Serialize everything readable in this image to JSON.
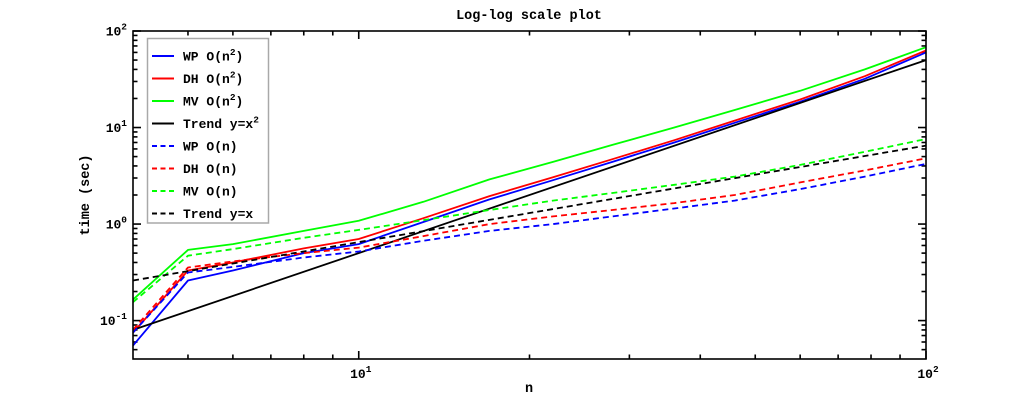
{
  "chart_data": {
    "type": "line",
    "title": "Log-log scale plot",
    "xlabel": "n",
    "ylabel": "time (sec)",
    "x_scale": "log",
    "y_scale": "log",
    "xlim": [
      4,
      100
    ],
    "ylim": [
      0.04,
      100
    ],
    "grid": false,
    "legend_position": "upper-left",
    "x_major_ticks": [
      {
        "value": 10,
        "base": "10",
        "exp": "1"
      },
      {
        "value": 100,
        "base": "10",
        "exp": "2"
      }
    ],
    "x_minor_ticks": [
      5,
      6,
      7,
      8,
      9,
      20,
      30,
      40,
      50,
      60,
      70,
      80,
      90
    ],
    "y_major_ticks": [
      {
        "value": 0.1,
        "base": "10",
        "exp": "-1"
      },
      {
        "value": 1,
        "base": "10",
        "exp": "0"
      },
      {
        "value": 10,
        "base": "10",
        "exp": "1"
      },
      {
        "value": 100,
        "base": "10",
        "exp": "2"
      }
    ],
    "y_minor_ticks": [
      0.05,
      0.06,
      0.07,
      0.08,
      0.09,
      0.2,
      0.3,
      0.4,
      0.5,
      0.6,
      0.7,
      0.8,
      0.9,
      2,
      3,
      4,
      5,
      6,
      7,
      8,
      9,
      20,
      30,
      40,
      50,
      60,
      70,
      80,
      90
    ],
    "series": [
      {
        "id": "wp-n2",
        "name": "WP O(n^2)",
        "color": "#0000ff",
        "style": "solid",
        "legend": {
          "pre": "WP O(n",
          "sup": "2",
          "post": ")"
        },
        "x": [
          4,
          5,
          6,
          8,
          10,
          13,
          17,
          22,
          28,
          36,
          46,
          60,
          78,
          100
        ],
        "y": [
          0.055,
          0.26,
          0.33,
          0.5,
          0.62,
          1.05,
          1.8,
          2.85,
          4.4,
          7.0,
          11.2,
          18.5,
          32,
          60
        ]
      },
      {
        "id": "dh-n2",
        "name": "DH O(n^2)",
        "color": "#ff0000",
        "style": "solid",
        "legend": {
          "pre": "DH O(n",
          "sup": "2",
          "post": ")"
        },
        "x": [
          4,
          5,
          6,
          8,
          10,
          13,
          17,
          22,
          28,
          36,
          46,
          60,
          78,
          100
        ],
        "y": [
          0.075,
          0.33,
          0.4,
          0.56,
          0.7,
          1.15,
          1.95,
          3.05,
          4.7,
          7.4,
          11.8,
          19.5,
          34,
          63
        ]
      },
      {
        "id": "mv-n2",
        "name": "MV O(n^2)",
        "color": "#00ff00",
        "style": "solid",
        "legend": {
          "pre": "MV O(n",
          "sup": "2",
          "post": ")"
        },
        "x": [
          4,
          5,
          6,
          8,
          10,
          13,
          17,
          22,
          28,
          36,
          46,
          60,
          78,
          100
        ],
        "y": [
          0.165,
          0.54,
          0.62,
          0.85,
          1.08,
          1.7,
          2.9,
          4.4,
          6.6,
          10.0,
          15.2,
          24,
          40,
          68
        ]
      },
      {
        "id": "trend-x2",
        "name": "Trend y=x^2",
        "color": "#000000",
        "style": "solid",
        "legend": {
          "pre": "Trend y=x",
          "sup": "2",
          "post": ""
        },
        "x": [
          4,
          100
        ],
        "y": [
          0.08,
          50
        ]
      },
      {
        "id": "wp-n",
        "name": "WP O(n)",
        "color": "#0000ff",
        "style": "dashed",
        "legend": {
          "pre": "WP O(n)",
          "sup": "",
          "post": ""
        },
        "x": [
          4,
          5,
          6,
          8,
          10,
          13,
          17,
          22,
          28,
          36,
          46,
          60,
          78,
          100
        ],
        "y": [
          0.075,
          0.315,
          0.36,
          0.45,
          0.52,
          0.67,
          0.85,
          1.0,
          1.2,
          1.45,
          1.75,
          2.3,
          3.1,
          4.2
        ]
      },
      {
        "id": "dh-n",
        "name": "DH O(n)",
        "color": "#ff0000",
        "style": "dashed",
        "legend": {
          "pre": "DH O(n)",
          "sup": "",
          "post": ""
        },
        "x": [
          4,
          5,
          6,
          8,
          10,
          13,
          17,
          22,
          28,
          36,
          46,
          60,
          78,
          100
        ],
        "y": [
          0.08,
          0.355,
          0.41,
          0.5,
          0.57,
          0.75,
          1.0,
          1.2,
          1.4,
          1.65,
          2.0,
          2.7,
          3.6,
          4.8
        ]
      },
      {
        "id": "mv-n",
        "name": "MV O(n)",
        "color": "#00ff00",
        "style": "dashed",
        "legend": {
          "pre": "MV O(n)",
          "sup": "",
          "post": ""
        },
        "x": [
          4,
          5,
          6,
          8,
          10,
          13,
          17,
          22,
          28,
          36,
          46,
          60,
          78,
          100
        ],
        "y": [
          0.155,
          0.47,
          0.55,
          0.72,
          0.87,
          1.1,
          1.4,
          1.75,
          2.1,
          2.55,
          3.1,
          4.1,
          5.6,
          7.6
        ]
      },
      {
        "id": "trend-x",
        "name": "Trend y=x",
        "color": "#000000",
        "style": "dashed",
        "legend": {
          "pre": "Trend y=x",
          "sup": "",
          "post": ""
        },
        "x": [
          4,
          100
        ],
        "y": [
          0.26,
          6.5
        ]
      }
    ]
  },
  "colors": {
    "background": "#ffffff",
    "axis": "#000000",
    "legend_border": "#a9a9a9",
    "legend_fill": "#ffffff"
  }
}
